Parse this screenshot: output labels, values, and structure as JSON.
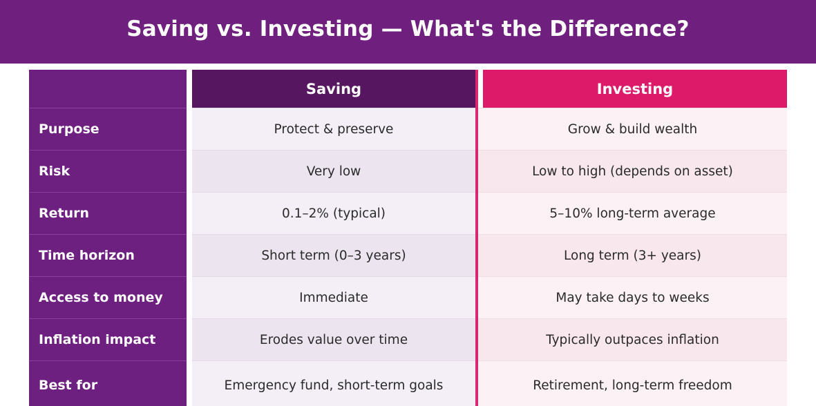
{
  "title": "Saving vs. Investing — What's the Difference?",
  "columns": {
    "saving": "Saving",
    "investing": "Investing"
  },
  "rows": [
    {
      "label": "Purpose",
      "saving": "Protect & preserve",
      "investing": "Grow & build wealth"
    },
    {
      "label": "Risk",
      "saving": "Very low",
      "investing": "Low to high (depends on asset)"
    },
    {
      "label": "Return",
      "saving": "0.1–2% (typical)",
      "investing": "5–10% long-term average"
    },
    {
      "label": "Time horizon",
      "saving": "Short term (0–3 years)",
      "investing": "Long term (3+ years)"
    },
    {
      "label": "Access to money",
      "saving": "Immediate",
      "investing": "May take days to weeks"
    },
    {
      "label": "Inflation impact",
      "saving": "Erodes value over time",
      "investing": "Typically outpaces inflation"
    },
    {
      "label": "Best for",
      "saving": "Emergency fund, short-term goals",
      "investing": "Retirement, long-term freedom"
    }
  ],
  "colors": {
    "banner": "#6f1f7e",
    "row_label": "#6d2080",
    "saving_header": "#561660",
    "investing_header": "#dd1a6a",
    "divider": "#d9276f"
  }
}
